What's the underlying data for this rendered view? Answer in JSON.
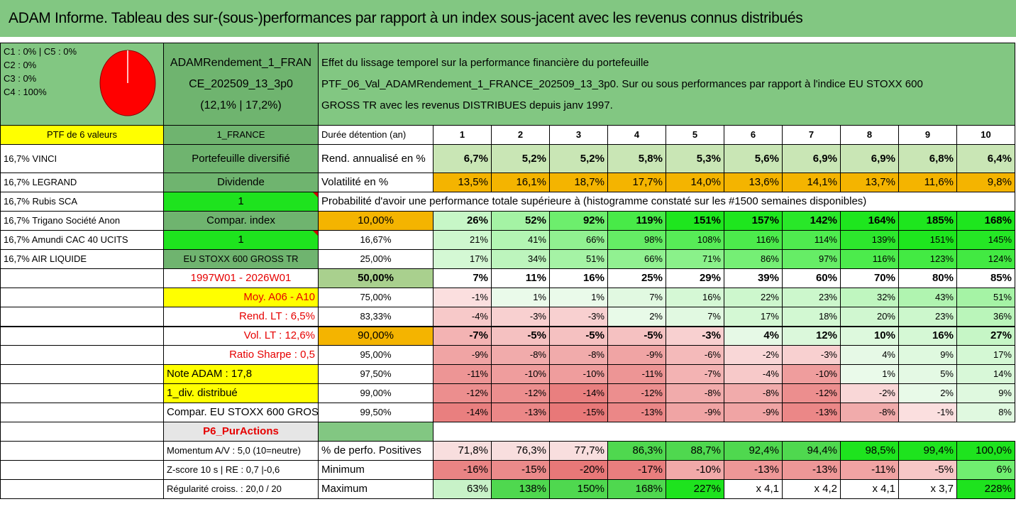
{
  "title": "ADAM Informe. Tableau des sur-(sous-)performances par rapport à un index sous-jacent avec les revenus connus distribués",
  "composition": {
    "c1c5": "C1 : 0% | C5 : 0%",
    "c2": "C2 : 0%",
    "c3": "C3 : 0%",
    "c4": "C4 : 100%",
    "pie_share_c4": 1.0,
    "pie_color": "#ff0000"
  },
  "portfolio_name": {
    "line1": "ADAMRendement_1_FRAN",
    "line2": "CE_202509_13_3p0",
    "line3": "(12,1% | 17,2%)"
  },
  "description": {
    "line1": "Effet du lissage temporel sur la performance financière du portefeuille",
    "line2": "PTF_06_Val_ADAMRendement_1_FRANCE_202509_13_3p0. Sur ou sous performances par rapport à l'indice EU STOXX 600",
    "line3": "GROSS TR avec les revenus DISTRIBUES depuis janv 1997."
  },
  "ptf_header": "PTF de 6 valeurs",
  "ptf_code": "1_FRANCE",
  "duration_label": "Durée détention (an)",
  "years": [
    "1",
    "2",
    "3",
    "4",
    "5",
    "6",
    "7",
    "8",
    "9",
    "10"
  ],
  "holdings": [
    "16,7% VINCI",
    "16,7% LEGRAND",
    "16,7% Rubis SCA",
    "16,7% Trigano Société Anon",
    "16,7% Amundi CAC 40 UCITS",
    "16,7% AIR LIQUIDE"
  ],
  "sidebar": {
    "diversified": "Portefeuille diversifié",
    "dividend": "Dividende",
    "dividend_value": "1",
    "compar_index": "Compar. index",
    "compar_value": "1",
    "index_name": "EU STOXX 600 GROSS TR",
    "period": "1997W01 - 2026W01",
    "moy": "Moy. A06 - A10",
    "rend_lt": "Rend. LT : 6,5%",
    "vol_lt": "Vol. LT : 12,6%",
    "sharpe": "Ratio Sharpe : 0,5",
    "note": "Note ADAM : 17,8",
    "div": "1_div. distribué",
    "compar_full": "Compar. EU STOXX 600 GROSS TR",
    "p6": "P6_PurActions",
    "momentum": "Momentum A/V : 5,0 (10=neutre)",
    "zscore": "Z-score 10 s | RE : 0,7 |-0,6",
    "regularite": "Régularité croiss. : 20,0 / 20"
  },
  "rend_label": "Rend. annualisé en %",
  "rend": [
    "6,7%",
    "5,2%",
    "5,2%",
    "5,8%",
    "5,3%",
    "5,6%",
    "6,9%",
    "6,9%",
    "6,8%",
    "6,4%"
  ],
  "vol_label": "Volatilité en %",
  "vol": [
    "13,5%",
    "16,1%",
    "18,7%",
    "17,7%",
    "14,0%",
    "13,6%",
    "14,1%",
    "13,7%",
    "11,6%",
    "9,8%"
  ],
  "prob_title": "Probabilité d'avoir une performance totale supérieure à (histogramme constaté sur les #1500 semaines disponibles)",
  "prob_rows": [
    {
      "p": "10,00%",
      "v": [
        "26%",
        "52%",
        "92%",
        "119%",
        "151%",
        "157%",
        "142%",
        "164%",
        "185%",
        "168%"
      ]
    },
    {
      "p": "16,67%",
      "v": [
        "21%",
        "41%",
        "66%",
        "98%",
        "108%",
        "116%",
        "114%",
        "139%",
        "151%",
        "145%"
      ]
    },
    {
      "p": "25,00%",
      "v": [
        "17%",
        "34%",
        "51%",
        "66%",
        "71%",
        "86%",
        "97%",
        "116%",
        "123%",
        "124%"
      ]
    },
    {
      "p": "50,00%",
      "v": [
        "7%",
        "11%",
        "16%",
        "25%",
        "29%",
        "39%",
        "60%",
        "70%",
        "80%",
        "85%"
      ]
    },
    {
      "p": "75,00%",
      "v": [
        "-1%",
        "1%",
        "1%",
        "7%",
        "16%",
        "22%",
        "23%",
        "32%",
        "43%",
        "51%"
      ]
    },
    {
      "p": "83,33%",
      "v": [
        "-4%",
        "-3%",
        "-3%",
        "2%",
        "7%",
        "17%",
        "18%",
        "20%",
        "23%",
        "36%"
      ]
    },
    {
      "p": "90,00%",
      "v": [
        "-7%",
        "-5%",
        "-5%",
        "-5%",
        "-3%",
        "4%",
        "12%",
        "10%",
        "16%",
        "27%"
      ]
    },
    {
      "p": "95,00%",
      "v": [
        "-9%",
        "-8%",
        "-8%",
        "-9%",
        "-6%",
        "-2%",
        "-3%",
        "4%",
        "9%",
        "17%"
      ]
    },
    {
      "p": "97,50%",
      "v": [
        "-11%",
        "-10%",
        "-10%",
        "-11%",
        "-7%",
        "-4%",
        "-10%",
        "1%",
        "5%",
        "14%"
      ]
    },
    {
      "p": "99,00%",
      "v": [
        "-12%",
        "-12%",
        "-14%",
        "-12%",
        "-8%",
        "-8%",
        "-12%",
        "-2%",
        "2%",
        "9%"
      ]
    },
    {
      "p": "99,50%",
      "v": [
        "-14%",
        "-13%",
        "-15%",
        "-13%",
        "-9%",
        "-9%",
        "-13%",
        "-8%",
        "-1%",
        "8%"
      ]
    }
  ],
  "pos_label": "% de perfo. Positives",
  "pos": [
    "71,8%",
    "76,3%",
    "77,7%",
    "86,3%",
    "88,7%",
    "92,4%",
    "94,4%",
    "98,5%",
    "99,4%",
    "100,0%"
  ],
  "min_label": "Minimum",
  "min": [
    "-16%",
    "-15%",
    "-20%",
    "-17%",
    "-10%",
    "-13%",
    "-13%",
    "-11%",
    "-5%",
    "6%"
  ],
  "max_label": "Maximum",
  "max": [
    "63%",
    "138%",
    "150%",
    "168%",
    "227%",
    "x 4,1",
    "x 4,2",
    "x 4,1",
    "x 3,7",
    "228%"
  ]
}
